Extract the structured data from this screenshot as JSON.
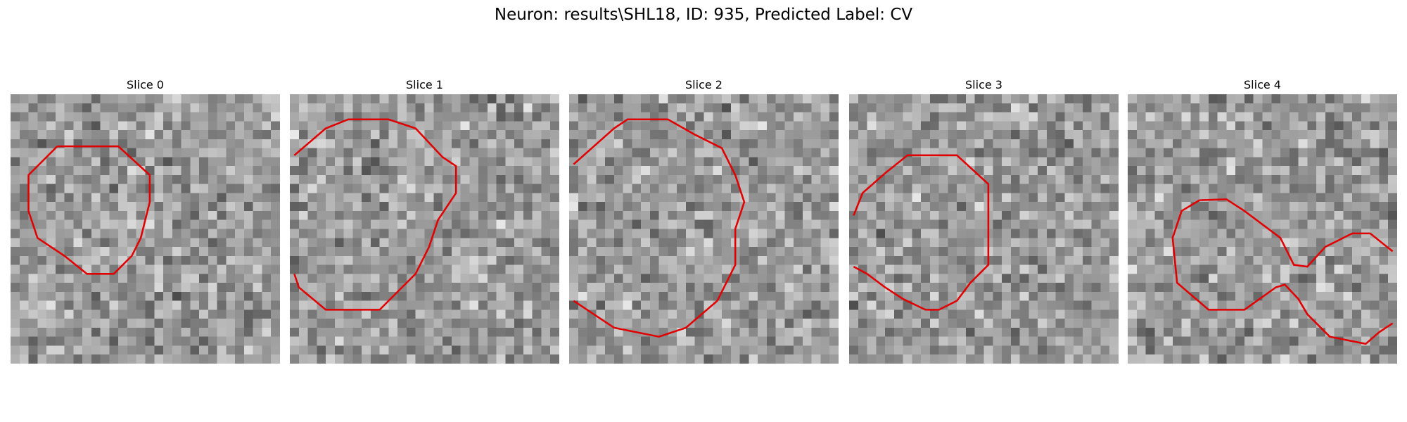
{
  "title": "Neuron: results\\SHL18, ID: 935, Predicted Label: CV",
  "panels": [
    {
      "title": "Slice 0"
    },
    {
      "title": "Slice 1"
    },
    {
      "title": "Slice 2"
    },
    {
      "title": "Slice 3"
    },
    {
      "title": "Slice 4"
    }
  ]
}
